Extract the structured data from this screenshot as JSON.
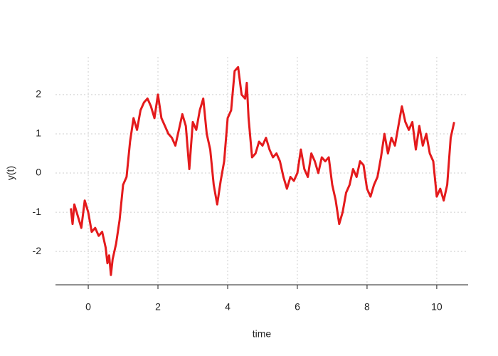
{
  "chart_data": {
    "type": "line",
    "x_label": "time",
    "y_label": "y(t)",
    "x": [
      -0.5,
      -0.45,
      -0.4,
      -0.3,
      -0.2,
      -0.1,
      0,
      0.1,
      0.2,
      0.3,
      0.4,
      0.5,
      0.55,
      0.6,
      0.65,
      0.7,
      0.8,
      0.9,
      1.0,
      1.1,
      1.2,
      1.3,
      1.4,
      1.5,
      1.6,
      1.7,
      1.8,
      1.9,
      2.0,
      2.1,
      2.2,
      2.3,
      2.4,
      2.5,
      2.6,
      2.7,
      2.8,
      2.9,
      3.0,
      3.1,
      3.2,
      3.3,
      3.4,
      3.5,
      3.6,
      3.7,
      3.8,
      3.9,
      4.0,
      4.1,
      4.2,
      4.3,
      4.4,
      4.5,
      4.55,
      4.6,
      4.7,
      4.8,
      4.9,
      5.0,
      5.1,
      5.2,
      5.3,
      5.4,
      5.5,
      5.6,
      5.7,
      5.8,
      5.9,
      6.0,
      6.1,
      6.2,
      6.3,
      6.4,
      6.5,
      6.6,
      6.7,
      6.8,
      6.9,
      7.0,
      7.1,
      7.2,
      7.3,
      7.4,
      7.5,
      7.6,
      7.7,
      7.8,
      7.9,
      8.0,
      8.1,
      8.2,
      8.3,
      8.4,
      8.5,
      8.6,
      8.7,
      8.8,
      8.9,
      9.0,
      9.1,
      9.2,
      9.3,
      9.4,
      9.5,
      9.6,
      9.7,
      9.8,
      9.9,
      10.0,
      10.1,
      10.2,
      10.3,
      10.4,
      10.5
    ],
    "series": [
      {
        "name": "y(t)",
        "color": "#e41a1c",
        "values": [
          -0.9,
          -1.3,
          -0.8,
          -1.1,
          -1.4,
          -0.7,
          -1.0,
          -1.5,
          -1.4,
          -1.6,
          -1.5,
          -1.9,
          -2.3,
          -2.1,
          -2.6,
          -2.2,
          -1.8,
          -1.2,
          -0.3,
          -0.1,
          0.8,
          1.4,
          1.1,
          1.6,
          1.8,
          1.9,
          1.7,
          1.4,
          2.0,
          1.4,
          1.2,
          1.0,
          0.9,
          0.7,
          1.1,
          1.5,
          1.2,
          0.1,
          1.3,
          1.1,
          1.6,
          1.9,
          1.0,
          0.6,
          -0.3,
          -0.8,
          -0.2,
          0.3,
          1.4,
          1.6,
          2.6,
          2.7,
          2.0,
          1.9,
          2.3,
          1.4,
          0.4,
          0.5,
          0.8,
          0.7,
          0.9,
          0.6,
          0.4,
          0.5,
          0.3,
          -0.1,
          -0.4,
          -0.1,
          -0.2,
          0.0,
          0.6,
          0.1,
          -0.1,
          0.5,
          0.3,
          0.0,
          0.4,
          0.3,
          0.4,
          -0.3,
          -0.7,
          -1.3,
          -1.0,
          -0.5,
          -0.3,
          0.1,
          -0.1,
          0.3,
          0.2,
          -0.4,
          -0.6,
          -0.3,
          -0.1,
          0.4,
          1.0,
          0.5,
          0.9,
          0.7,
          1.2,
          1.7,
          1.3,
          1.1,
          1.3,
          0.6,
          1.2,
          0.7,
          1.0,
          0.5,
          0.3,
          -0.6,
          -0.4,
          -0.7,
          -0.3,
          0.9,
          1.3
        ]
      }
    ],
    "xlim": [
      -0.94,
      10.9
    ],
    "ylim": [
      -2.85,
      2.96
    ],
    "xticks": [
      0,
      2,
      4,
      6,
      8,
      10
    ],
    "yticks": [
      -2,
      -1,
      0,
      1,
      2
    ],
    "grid": true
  }
}
